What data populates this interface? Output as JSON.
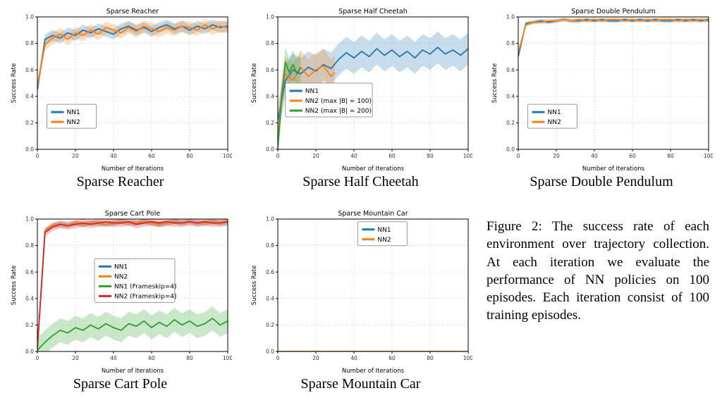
{
  "figure_caption": "Figure 2: The success rate of each environment over trajectory collection. At each iteration we evaluate the performance of NN policies on 100 episodes. Each iteration consist of 100 training episodes.",
  "colors": {
    "blue": "#1f77b4",
    "orange": "#ff7f0e",
    "green": "#2ca02c",
    "red": "#d62728"
  },
  "panels": [
    {
      "caption": "Sparse Reacher"
    },
    {
      "caption": "Sparse Half Cheetah"
    },
    {
      "caption": "Sparse Double Pendulum"
    },
    {
      "caption": "Sparse Cart Pole"
    },
    {
      "caption": "Sparse Mountain Car"
    }
  ],
  "chart_data": [
    {
      "type": "line",
      "title": "Sparse Reacher",
      "xlabel": "Number of Iterations",
      "ylabel": "Success Rate",
      "xlim": [
        0,
        100
      ],
      "ylim": [
        0,
        1
      ],
      "xticks": [
        0,
        20,
        40,
        60,
        80,
        100
      ],
      "yticks": [
        0,
        0.2,
        0.4,
        0.6,
        0.8,
        1
      ],
      "grid": true,
      "legend_pos": {
        "x": 0.05,
        "y": 0.66
      },
      "x": [
        0,
        4,
        8,
        12,
        16,
        20,
        24,
        28,
        32,
        36,
        40,
        44,
        48,
        52,
        56,
        60,
        64,
        68,
        72,
        76,
        80,
        84,
        88,
        92,
        96,
        100
      ],
      "series": [
        {
          "name": "NN1",
          "color": "#1f77b4",
          "band": 0.04,
          "y": [
            0.45,
            0.83,
            0.86,
            0.84,
            0.88,
            0.86,
            0.9,
            0.88,
            0.91,
            0.89,
            0.87,
            0.91,
            0.93,
            0.9,
            0.92,
            0.89,
            0.92,
            0.94,
            0.91,
            0.93,
            0.9,
            0.93,
            0.91,
            0.94,
            0.92,
            0.93
          ]
        },
        {
          "name": "NN2",
          "color": "#ff7f0e",
          "band": 0.045,
          "y": [
            0.48,
            0.79,
            0.84,
            0.87,
            0.83,
            0.88,
            0.86,
            0.9,
            0.87,
            0.92,
            0.9,
            0.88,
            0.92,
            0.89,
            0.93,
            0.91,
            0.89,
            0.92,
            0.9,
            0.93,
            0.92,
            0.9,
            0.94,
            0.91,
            0.93,
            0.92
          ]
        }
      ]
    },
    {
      "type": "line",
      "title": "Sparse Half Cheetah",
      "xlabel": "Number of Iterations",
      "ylabel": "Success Rate",
      "xlim": [
        0,
        100
      ],
      "ylim": [
        0,
        1
      ],
      "xticks": [
        0,
        20,
        40,
        60,
        80,
        100
      ],
      "yticks": [
        0,
        0.2,
        0.4,
        0.6,
        0.8,
        1
      ],
      "grid": true,
      "legend_pos": {
        "x": 0.04,
        "y": 0.5
      },
      "x": [
        0,
        4,
        8,
        12,
        16,
        20,
        24,
        28,
        32,
        36,
        40,
        44,
        48,
        52,
        56,
        60,
        64,
        68,
        72,
        76,
        80,
        84,
        88,
        92,
        96,
        100
      ],
      "series": [
        {
          "name": "NN1",
          "color": "#1f77b4",
          "band": 0.12,
          "y": [
            0.22,
            0.52,
            0.6,
            0.57,
            0.62,
            0.59,
            0.64,
            0.61,
            0.68,
            0.73,
            0.69,
            0.74,
            0.7,
            0.76,
            0.71,
            0.75,
            0.7,
            0.74,
            0.69,
            0.75,
            0.72,
            0.77,
            0.72,
            0.75,
            0.71,
            0.76
          ]
        },
        {
          "name": "NN2 (max |B| = 100)",
          "color": "#ff7f0e",
          "band": 0.13,
          "x": [
            0,
            2,
            4,
            8,
            12,
            16,
            20,
            24,
            28,
            30
          ],
          "y": [
            0.05,
            0.42,
            0.57,
            0.52,
            0.62,
            0.55,
            0.6,
            0.63,
            0.55,
            0.58
          ]
        },
        {
          "name": "NN2 (max |B| = 200)",
          "color": "#2ca02c",
          "band": 0.11,
          "x": [
            0,
            2,
            4,
            6,
            8,
            10,
            12
          ],
          "y": [
            0.02,
            0.38,
            0.66,
            0.58,
            0.64,
            0.57,
            0.62
          ]
        }
      ]
    },
    {
      "type": "line",
      "title": "Sparse Double Pendulum",
      "xlabel": "Number of Iterations",
      "ylabel": "Success Rate",
      "xlim": [
        0,
        100
      ],
      "ylim": [
        0,
        1
      ],
      "xticks": [
        0,
        20,
        40,
        60,
        80,
        100
      ],
      "yticks": [
        0,
        0.2,
        0.4,
        0.6,
        0.8,
        1
      ],
      "grid": true,
      "legend_pos": {
        "x": 0.05,
        "y": 0.66
      },
      "x": [
        0,
        4,
        8,
        12,
        16,
        20,
        24,
        28,
        32,
        36,
        40,
        44,
        48,
        52,
        56,
        60,
        64,
        68,
        72,
        76,
        80,
        84,
        88,
        92,
        96,
        100
      ],
      "series": [
        {
          "name": "NN1",
          "color": "#1f77b4",
          "band": 0.015,
          "y": [
            0.7,
            0.95,
            0.96,
            0.97,
            0.96,
            0.97,
            0.98,
            0.97,
            0.97,
            0.98,
            0.97,
            0.98,
            0.97,
            0.97,
            0.98,
            0.97,
            0.98,
            0.97,
            0.98,
            0.97,
            0.97,
            0.98,
            0.97,
            0.98,
            0.97,
            0.98
          ]
        },
        {
          "name": "NN2",
          "color": "#ff7f0e",
          "band": 0.015,
          "y": [
            0.73,
            0.94,
            0.96,
            0.96,
            0.97,
            0.97,
            0.98,
            0.97,
            0.98,
            0.97,
            0.98,
            0.97,
            0.98,
            0.98,
            0.97,
            0.98,
            0.97,
            0.98,
            0.97,
            0.98,
            0.98,
            0.97,
            0.98,
            0.97,
            0.98,
            0.97
          ]
        }
      ]
    },
    {
      "type": "line",
      "title": "Sparse Cart Pole",
      "xlabel": "Number of Iterations",
      "ylabel": "Success Rate",
      "xlim": [
        0,
        100
      ],
      "ylim": [
        0,
        1
      ],
      "xticks": [
        0,
        20,
        40,
        60,
        80,
        100
      ],
      "yticks": [
        0,
        0.2,
        0.4,
        0.6,
        0.8,
        1
      ],
      "grid": true,
      "legend_pos": {
        "x": 0.3,
        "y": 0.3
      },
      "x": [
        0,
        4,
        8,
        12,
        16,
        20,
        24,
        28,
        32,
        36,
        40,
        44,
        48,
        52,
        56,
        60,
        64,
        68,
        72,
        76,
        80,
        84,
        88,
        92,
        96,
        100
      ],
      "series": [
        {
          "name": "NN1",
          "color": "#1f77b4",
          "band": 0.02,
          "y": [
            0.02,
            0.91,
            0.95,
            0.96,
            0.95,
            0.97,
            0.96,
            0.97,
            0.97,
            0.96,
            0.97,
            0.98,
            0.97,
            0.97,
            0.98,
            0.97,
            0.96,
            0.97,
            0.98,
            0.97,
            0.98,
            0.97,
            0.97,
            0.98,
            0.97,
            0.98
          ]
        },
        {
          "name": "NN2",
          "color": "#ff7f0e",
          "band": 0.02,
          "y": [
            0.02,
            0.91,
            0.95,
            0.96,
            0.95,
            0.97,
            0.96,
            0.97,
            0.97,
            0.96,
            0.97,
            0.98,
            0.97,
            0.97,
            0.98,
            0.97,
            0.96,
            0.97,
            0.98,
            0.97,
            0.98,
            0.97,
            0.97,
            0.98,
            0.97,
            0.98
          ]
        },
        {
          "name": "NN1 (Frameskip=4)",
          "color": "#2ca02c",
          "band": 0.09,
          "y": [
            0.01,
            0.07,
            0.12,
            0.16,
            0.14,
            0.18,
            0.16,
            0.2,
            0.17,
            0.21,
            0.18,
            0.16,
            0.21,
            0.19,
            0.23,
            0.18,
            0.22,
            0.19,
            0.24,
            0.2,
            0.23,
            0.19,
            0.21,
            0.25,
            0.2,
            0.23
          ]
        },
        {
          "name": "NN2 (Frameskip=4)",
          "color": "#d62728",
          "band": 0.03,
          "y": [
            0.02,
            0.9,
            0.94,
            0.96,
            0.95,
            0.96,
            0.97,
            0.96,
            0.97,
            0.98,
            0.97,
            0.97,
            0.98,
            0.96,
            0.97,
            0.98,
            0.97,
            0.98,
            0.97,
            0.97,
            0.98,
            0.97,
            0.98,
            0.97,
            0.97,
            0.98
          ]
        }
      ]
    },
    {
      "type": "line",
      "title": "Sparse Mountain Car",
      "xlabel": "Number of Iterations",
      "ylabel": "Success Rate",
      "xlim": [
        0,
        100
      ],
      "ylim": [
        0,
        1
      ],
      "xticks": [
        0,
        20,
        40,
        60,
        80,
        100
      ],
      "yticks": [
        0,
        0.2,
        0.4,
        0.6,
        0.8,
        1
      ],
      "grid": true,
      "legend_pos": {
        "x": 0.42,
        "y": 0.02
      },
      "x": [
        0,
        100
      ],
      "series": [
        {
          "name": "NN1",
          "color": "#1f77b4",
          "band": 0,
          "y": [
            0,
            0
          ]
        },
        {
          "name": "NN2",
          "color": "#ff7f0e",
          "band": 0,
          "y": [
            0,
            0
          ]
        }
      ]
    }
  ]
}
